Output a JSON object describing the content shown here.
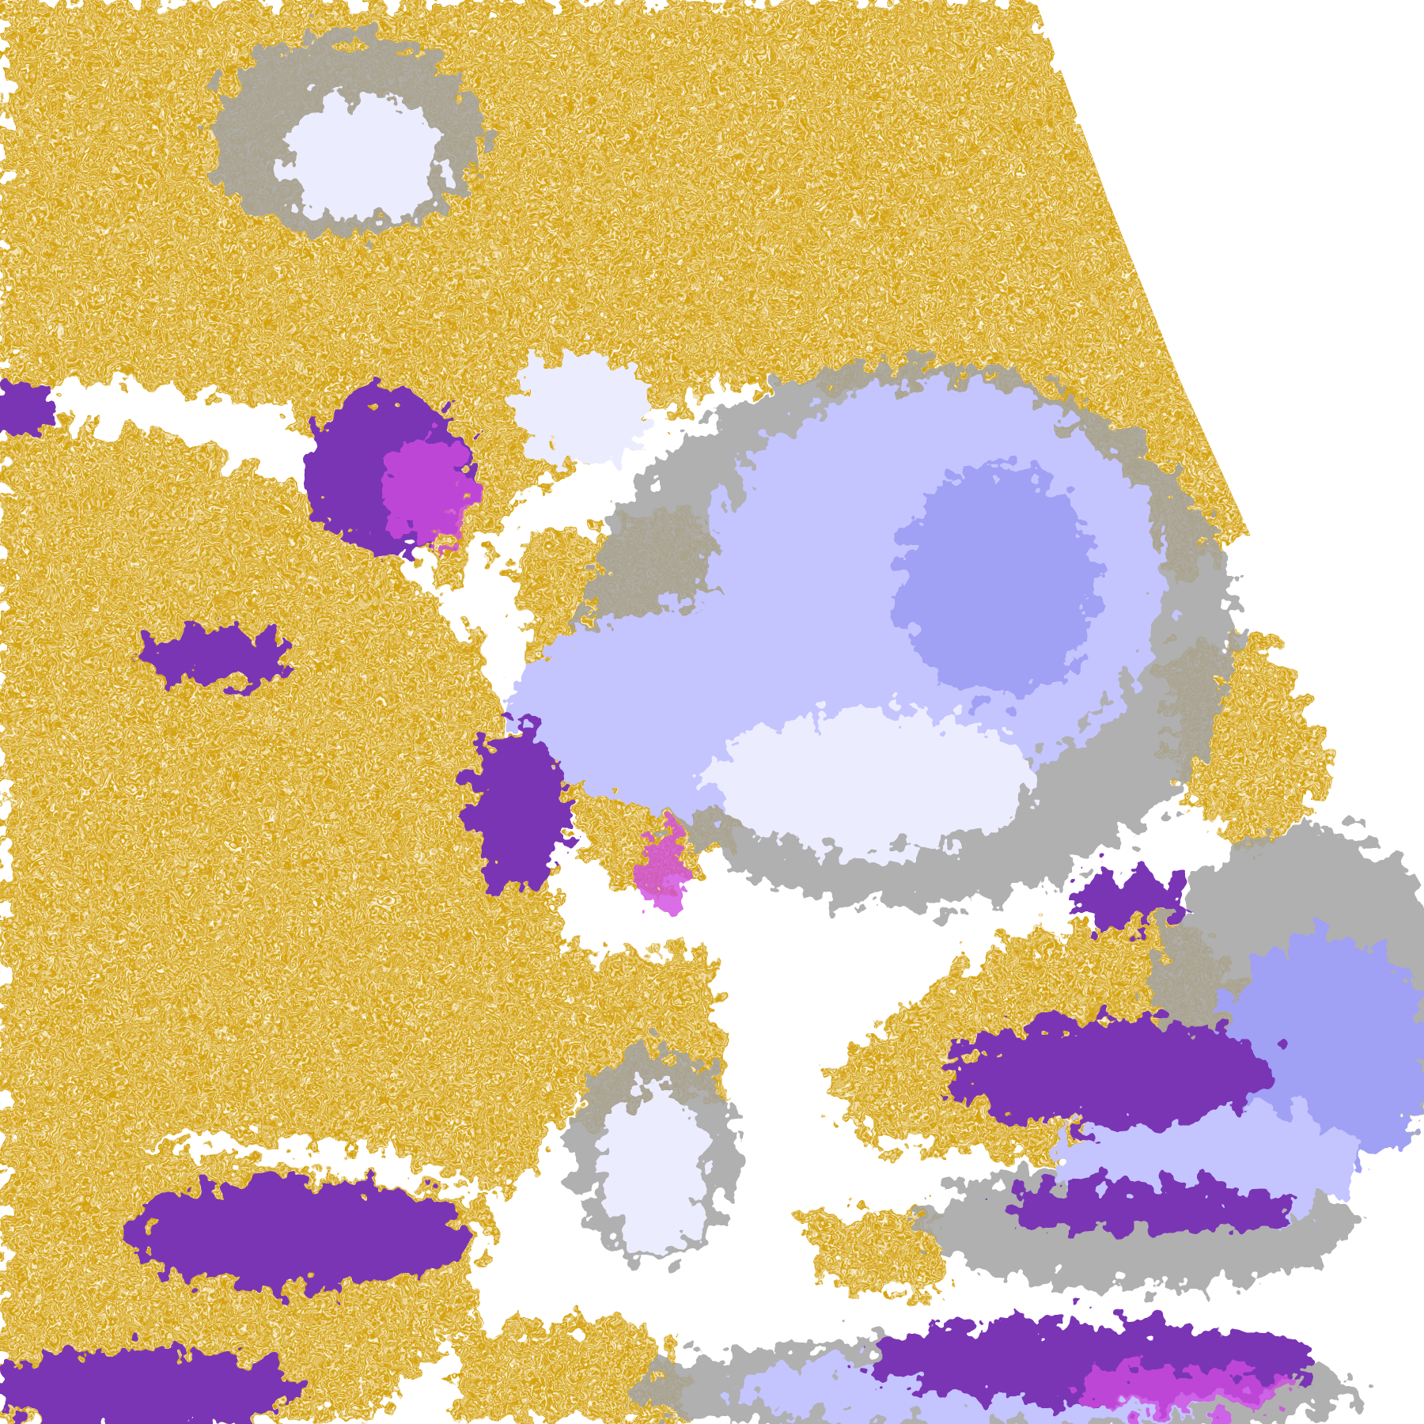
{
  "map": {
    "kind": "satellite cloud-type classification image",
    "palette": {
      "background": "#ffffff",
      "gold": "#d4a20e",
      "purple": "#7a35b5",
      "magenta": "#d04ce0",
      "lavender": "#c4c4ff",
      "pale_lavender": "#ececff",
      "periwinkle": "#a0a0f4",
      "gray": "#a3a3a3"
    }
  }
}
